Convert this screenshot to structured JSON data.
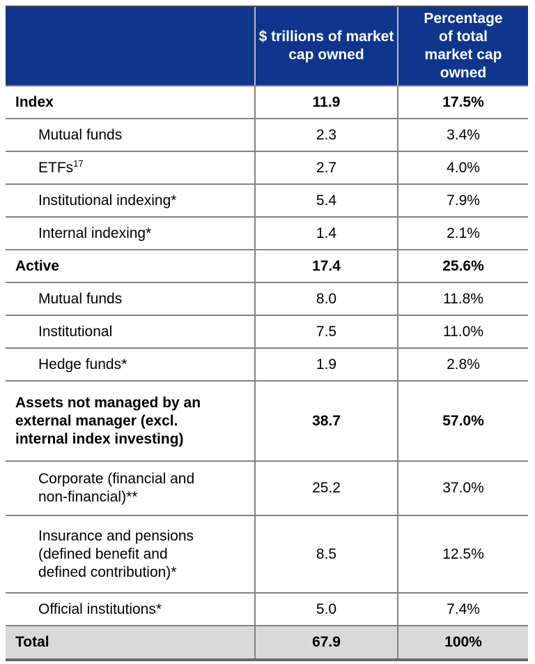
{
  "chart_data": {
    "type": "table",
    "columns": [
      "",
      "$ trillions of market cap owned",
      "Percentage of total market cap owned"
    ],
    "rows": [
      {
        "label": "Index",
        "level": 0,
        "value": "11.9",
        "pct": "17.5%"
      },
      {
        "label": "Mutual funds",
        "level": 1,
        "value": "2.3",
        "pct": "3.4%"
      },
      {
        "label": "ETFs",
        "sup": "17",
        "level": 1,
        "value": "2.7",
        "pct": "4.0%"
      },
      {
        "label": "Institutional indexing*",
        "level": 1,
        "value": "5.4",
        "pct": "7.9%"
      },
      {
        "label": "Internal indexing*",
        "level": 1,
        "value": "1.4",
        "pct": "2.1%"
      },
      {
        "label": "Active",
        "level": 0,
        "value": "17.4",
        "pct": "25.6%"
      },
      {
        "label": "Mutual funds",
        "level": 1,
        "value": "8.0",
        "pct": "11.8%"
      },
      {
        "label": "Institutional",
        "level": 1,
        "value": "7.5",
        "pct": "11.0%"
      },
      {
        "label": "Hedge funds*",
        "level": 1,
        "value": "1.9",
        "pct": "2.8%"
      },
      {
        "label": "Assets not managed by an external manager (excl. internal index investing)",
        "level": 0,
        "value": "38.7",
        "pct": "57.0%"
      },
      {
        "label": "Corporate (financial and non-financial)**",
        "level": 1,
        "value": "25.2",
        "pct": "37.0%"
      },
      {
        "label": "Insurance and pensions (defined benefit and defined contribution)*",
        "level": 1,
        "value": "8.5",
        "pct": "12.5%"
      },
      {
        "label": "Official institutions*",
        "level": 1,
        "value": "5.0",
        "pct": "7.4%"
      },
      {
        "label": "Total",
        "level": 0,
        "value": "67.9",
        "pct": "100%"
      }
    ],
    "colors": {
      "header_bg": "#0f358c",
      "header_text": "#ffffff",
      "grid": "#828282",
      "total_row_bg": "#d9d9d9",
      "body_text": "#000000"
    },
    "title": ""
  }
}
